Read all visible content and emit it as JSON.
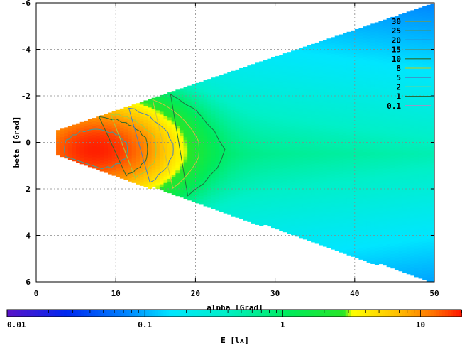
{
  "chart_data": {
    "type": "heatmap",
    "title": "",
    "xlabel": "alpha [Grad]",
    "ylabel": "beta [Grad]",
    "xlim": [
      0,
      50
    ],
    "ylim": [
      6,
      -6
    ],
    "x_ticks": [
      0,
      10,
      20,
      30,
      40,
      50
    ],
    "y_ticks": [
      -6,
      -4,
      -2,
      0,
      2,
      4,
      6
    ],
    "y_tick_labels": [
      "-6",
      "-4",
      "-2",
      "0",
      "2",
      "4",
      "6"
    ],
    "grid": true,
    "colorbar": {
      "label": "E [lx]",
      "scale": "log",
      "range": [
        0.01,
        20
      ],
      "tick_labels": [
        "0.01",
        "0.1",
        "1",
        "10"
      ],
      "tick_values": [
        0.01,
        0.1,
        1,
        10
      ]
    },
    "contour_legend": {
      "placement": "top-right",
      "levels": [
        {
          "label": "30",
          "color": "#8a9a30"
        },
        {
          "label": "25",
          "color": "#6a8a2a"
        },
        {
          "label": "20",
          "color": "#5a6aa0"
        },
        {
          "label": "15",
          "color": "#3aa0a0"
        },
        {
          "label": "10",
          "color": "#2a6a2a"
        },
        {
          "label": "8",
          "color": "#a0d040"
        },
        {
          "label": "5",
          "color": "#4a80c0"
        },
        {
          "label": "2",
          "color": "#d0c040"
        },
        {
          "label": "1",
          "color": "#207040"
        },
        {
          "label": "0.1",
          "color": "#c080c0"
        }
      ]
    },
    "field": {
      "description_peak": {
        "alpha": 7.5,
        "beta": 0.3,
        "value": 18
      },
      "alpha_start": 2.5,
      "alpha_end": 50,
      "beta_halfwidth_at_start": 0.5,
      "beta_halfwidth_at_end": 6
    }
  }
}
